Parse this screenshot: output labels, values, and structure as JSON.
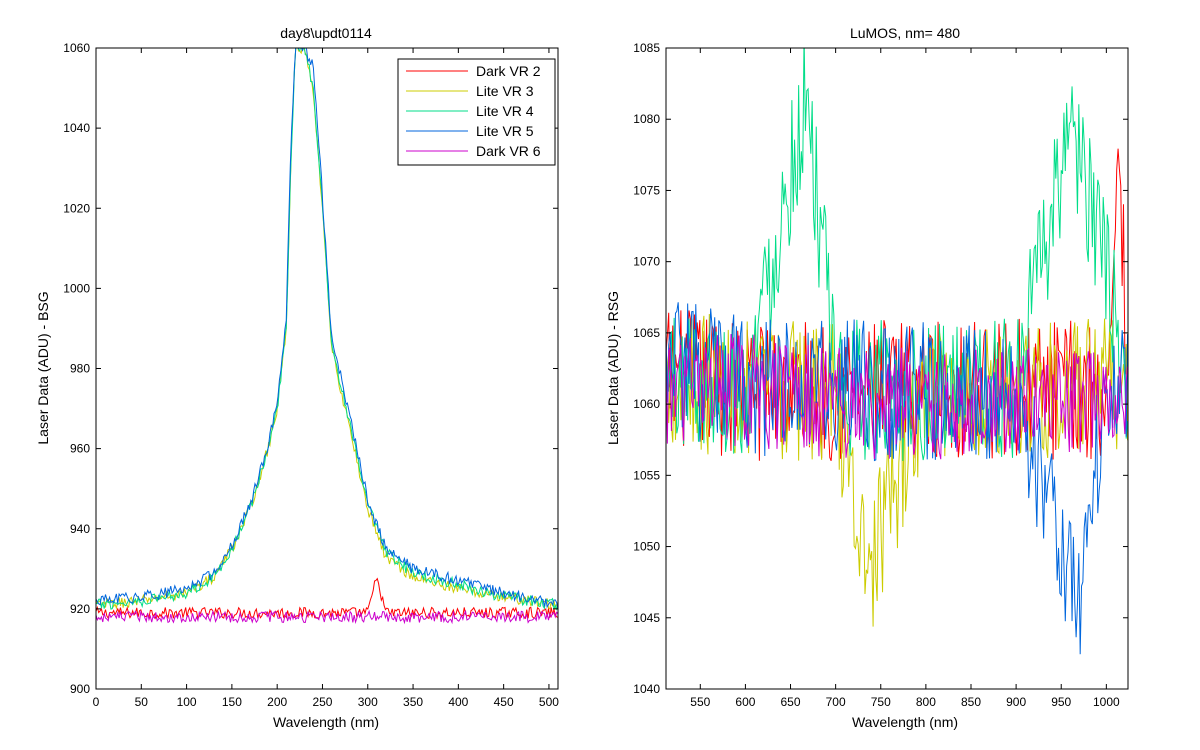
{
  "chart_data": [
    {
      "type": "line",
      "title": "day8\\updt0114",
      "xlabel": "Wavelength (nm)",
      "ylabel": "Laser Data (ADU) - BSG",
      "xlim": [
        0,
        510
      ],
      "ylim": [
        900,
        1060
      ],
      "xticks": [
        0,
        50,
        100,
        150,
        200,
        250,
        300,
        350,
        400,
        450,
        500
      ],
      "yticks": [
        900,
        920,
        940,
        960,
        980,
        1000,
        1020,
        1040,
        1060
      ],
      "grid": false,
      "legend_position": "top-right",
      "series": [
        {
          "name": "Dark VR 2",
          "color": "#ff0000",
          "x": [
            0,
            50,
            100,
            150,
            200,
            250,
            300,
            310,
            320,
            350,
            400,
            450,
            510
          ],
          "y": [
            919,
            919,
            919,
            919,
            919,
            919,
            919,
            928,
            919,
            919,
            919,
            919,
            919
          ]
        },
        {
          "name": "Lite VR 3",
          "color": "#cccc00",
          "x": [
            0,
            50,
            100,
            130,
            150,
            170,
            190,
            200,
            210,
            215,
            220,
            230,
            240,
            250,
            260,
            270,
            280,
            290,
            300,
            320,
            350,
            400,
            450,
            510
          ],
          "y": [
            921,
            922,
            924,
            928,
            935,
            945,
            960,
            970,
            990,
            1030,
            1060,
            1060,
            1048,
            1020,
            985,
            975,
            965,
            955,
            945,
            933,
            928,
            925,
            923,
            921
          ]
        },
        {
          "name": "Lite VR 4",
          "color": "#00dd88",
          "x": [
            0,
            50,
            100,
            130,
            150,
            170,
            190,
            200,
            210,
            215,
            220,
            230,
            240,
            250,
            260,
            270,
            280,
            290,
            300,
            320,
            350,
            400,
            450,
            510
          ],
          "y": [
            921,
            922,
            924,
            928,
            935,
            945,
            960,
            970,
            990,
            1030,
            1060,
            1060,
            1050,
            1021,
            986,
            976,
            966,
            956,
            946,
            934,
            929,
            926,
            923,
            921
          ]
        },
        {
          "name": "Lite VR 5",
          "color": "#0066dd",
          "x": [
            0,
            50,
            100,
            130,
            150,
            170,
            190,
            200,
            210,
            215,
            220,
            230,
            240,
            250,
            260,
            270,
            280,
            290,
            300,
            320,
            350,
            400,
            450,
            510
          ],
          "y": [
            922,
            923,
            925,
            929,
            936,
            946,
            961,
            972,
            992,
            1035,
            1060,
            1060,
            1055,
            1023,
            988,
            978,
            968,
            958,
            947,
            935,
            930,
            927,
            924,
            921
          ]
        },
        {
          "name": "Dark VR 6",
          "color": "#cc00cc",
          "x": [
            0,
            50,
            100,
            150,
            200,
            250,
            300,
            350,
            400,
            450,
            510
          ],
          "y": [
            918,
            918,
            918,
            918,
            918,
            918,
            918,
            918,
            918,
            918,
            918
          ]
        }
      ]
    },
    {
      "type": "line",
      "title": "LuMOS, nm= 480",
      "xlabel": "Wavelength (nm)",
      "ylabel": "Laser Data (ADU) - RSG",
      "xlim": [
        512,
        1024
      ],
      "ylim": [
        1040,
        1085
      ],
      "xticks": [
        550,
        600,
        650,
        700,
        750,
        800,
        850,
        900,
        950,
        1000
      ],
      "yticks": [
        1040,
        1045,
        1050,
        1055,
        1060,
        1065,
        1070,
        1075,
        1080,
        1085
      ],
      "grid": false,
      "series": [
        {
          "color": "#ff0000",
          "x": [
            512,
            600,
            700,
            800,
            900,
            1000,
            1015,
            1024
          ],
          "y": [
            1062,
            1061,
            1061,
            1061,
            1061,
            1061,
            1077,
            1062
          ],
          "noise_amplitude": 5
        },
        {
          "color": "#cccc00",
          "x": [
            512,
            600,
            700,
            735,
            800,
            900,
            1000,
            1024
          ],
          "y": [
            1062,
            1061,
            1061,
            1048,
            1061,
            1061,
            1061,
            1062
          ],
          "noise_amplitude": 5
        },
        {
          "color": "#00dd88",
          "x": [
            512,
            600,
            668,
            700,
            800,
            900,
            960,
            1024
          ],
          "y": [
            1062,
            1061,
            1082,
            1061,
            1061,
            1061,
            1080,
            1062
          ],
          "noise_amplitude": 5
        },
        {
          "color": "#0066dd",
          "x": [
            512,
            600,
            700,
            800,
            900,
            968,
            1000,
            1024
          ],
          "y": [
            1063,
            1061,
            1061,
            1061,
            1061,
            1046,
            1061,
            1062
          ],
          "noise_amplitude": 5
        },
        {
          "color": "#cc00cc",
          "x": [
            512,
            600,
            700,
            800,
            900,
            1000,
            1024
          ],
          "y": [
            1061,
            1061,
            1060,
            1060,
            1060,
            1060,
            1061
          ],
          "noise_amplitude": 4
        }
      ]
    }
  ]
}
